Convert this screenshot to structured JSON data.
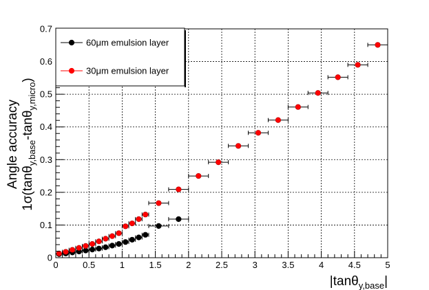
{
  "chart_data": {
    "type": "scatter",
    "title": "",
    "xlabel": "|tanθ_{y,base}|",
    "ylabel_line1": "Angle accuracy",
    "ylabel_line2": "1σ(tanθ_{y,base}-tanθ_{y,micro})",
    "xlim": [
      0,
      5
    ],
    "ylim": [
      0,
      0.7
    ],
    "xticks": [
      "0",
      "0.5",
      "1",
      "1.5",
      "2",
      "2.5",
      "3",
      "3.5",
      "4",
      "4.5",
      "5"
    ],
    "yticks": [
      "0",
      "0.1",
      "0.2",
      "0.3",
      "0.4",
      "0.5",
      "0.6",
      "0.7"
    ],
    "grid": true,
    "legend_position": "top-left",
    "series": [
      {
        "name": "60μm emulsion layer",
        "color": "#000000",
        "points": [
          {
            "x": 0.05,
            "y": 0.011,
            "xerr": 0.05
          },
          {
            "x": 0.15,
            "y": 0.013,
            "xerr": 0.05
          },
          {
            "x": 0.25,
            "y": 0.016,
            "xerr": 0.05
          },
          {
            "x": 0.35,
            "y": 0.019,
            "xerr": 0.05
          },
          {
            "x": 0.45,
            "y": 0.022,
            "xerr": 0.05
          },
          {
            "x": 0.55,
            "y": 0.025,
            "xerr": 0.05
          },
          {
            "x": 0.65,
            "y": 0.028,
            "xerr": 0.05
          },
          {
            "x": 0.75,
            "y": 0.032,
            "xerr": 0.05
          },
          {
            "x": 0.85,
            "y": 0.037,
            "xerr": 0.05
          },
          {
            "x": 0.95,
            "y": 0.042,
            "xerr": 0.05
          },
          {
            "x": 1.05,
            "y": 0.048,
            "xerr": 0.05
          },
          {
            "x": 1.15,
            "y": 0.055,
            "xerr": 0.05
          },
          {
            "x": 1.25,
            "y": 0.062,
            "xerr": 0.05
          },
          {
            "x": 1.35,
            "y": 0.07,
            "xerr": 0.05
          },
          {
            "x": 1.55,
            "y": 0.097,
            "xerr": 0.15
          },
          {
            "x": 1.85,
            "y": 0.118,
            "xerr": 0.15
          }
        ]
      },
      {
        "name": "30μm emulsion layer",
        "color": "#ff0000",
        "points": [
          {
            "x": 0.05,
            "y": 0.013,
            "xerr": 0.05
          },
          {
            "x": 0.15,
            "y": 0.018,
            "xerr": 0.05
          },
          {
            "x": 0.25,
            "y": 0.024,
            "xerr": 0.05
          },
          {
            "x": 0.35,
            "y": 0.03,
            "xerr": 0.05
          },
          {
            "x": 0.45,
            "y": 0.036,
            "xerr": 0.05
          },
          {
            "x": 0.55,
            "y": 0.042,
            "xerr": 0.05
          },
          {
            "x": 0.65,
            "y": 0.05,
            "xerr": 0.05
          },
          {
            "x": 0.75,
            "y": 0.058,
            "xerr": 0.05
          },
          {
            "x": 0.85,
            "y": 0.066,
            "xerr": 0.05
          },
          {
            "x": 0.95,
            "y": 0.075,
            "xerr": 0.05
          },
          {
            "x": 1.05,
            "y": 0.096,
            "xerr": 0.05
          },
          {
            "x": 1.15,
            "y": 0.105,
            "xerr": 0.05
          },
          {
            "x": 1.25,
            "y": 0.118,
            "xerr": 0.05
          },
          {
            "x": 1.35,
            "y": 0.132,
            "xerr": 0.05
          },
          {
            "x": 1.55,
            "y": 0.167,
            "xerr": 0.15
          },
          {
            "x": 1.85,
            "y": 0.209,
            "xerr": 0.15
          },
          {
            "x": 2.15,
            "y": 0.25,
            "xerr": 0.15
          },
          {
            "x": 2.45,
            "y": 0.292,
            "xerr": 0.15
          },
          {
            "x": 2.75,
            "y": 0.342,
            "xerr": 0.15
          },
          {
            "x": 3.05,
            "y": 0.382,
            "xerr": 0.15
          },
          {
            "x": 3.35,
            "y": 0.421,
            "xerr": 0.15
          },
          {
            "x": 3.65,
            "y": 0.461,
            "xerr": 0.15
          },
          {
            "x": 3.95,
            "y": 0.504,
            "xerr": 0.15
          },
          {
            "x": 4.25,
            "y": 0.552,
            "xerr": 0.15
          },
          {
            "x": 4.55,
            "y": 0.59,
            "xerr": 0.15
          },
          {
            "x": 4.85,
            "y": 0.651,
            "xerr": 0.15,
            "yerr": 0.008
          }
        ]
      }
    ]
  }
}
